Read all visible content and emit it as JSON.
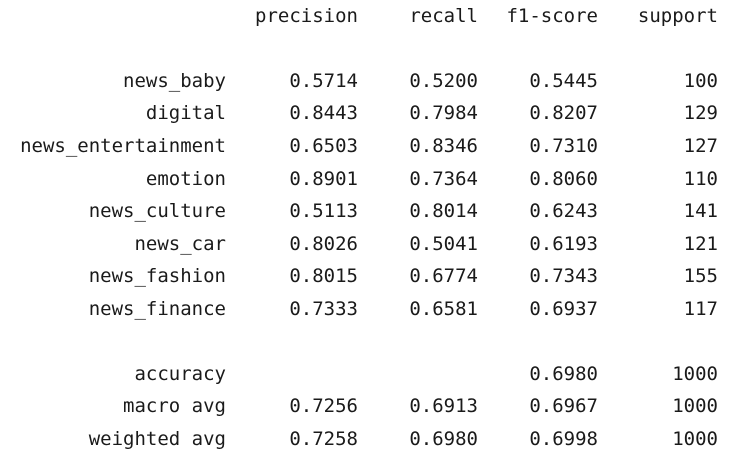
{
  "headers": {
    "precision": "precision",
    "recall": "recall",
    "f1": "f1-score",
    "support": "support"
  },
  "classes": [
    {
      "label": "news_baby",
      "precision": "0.5714",
      "recall": "0.5200",
      "f1": "0.5445",
      "support": "100"
    },
    {
      "label": "digital",
      "precision": "0.8443",
      "recall": "0.7984",
      "f1": "0.8207",
      "support": "129"
    },
    {
      "label": "news_entertainment",
      "precision": "0.6503",
      "recall": "0.8346",
      "f1": "0.7310",
      "support": "127"
    },
    {
      "label": "emotion",
      "precision": "0.8901",
      "recall": "0.7364",
      "f1": "0.8060",
      "support": "110"
    },
    {
      "label": "news_culture",
      "precision": "0.5113",
      "recall": "0.8014",
      "f1": "0.6243",
      "support": "141"
    },
    {
      "label": "news_car",
      "precision": "0.8026",
      "recall": "0.5041",
      "f1": "0.6193",
      "support": "121"
    },
    {
      "label": "news_fashion",
      "precision": "0.8015",
      "recall": "0.6774",
      "f1": "0.7343",
      "support": "155"
    },
    {
      "label": "news_finance",
      "precision": "0.7333",
      "recall": "0.6581",
      "f1": "0.6937",
      "support": "117"
    }
  ],
  "summary": {
    "accuracy": {
      "label": "accuracy",
      "f1": "0.6980",
      "support": "1000"
    },
    "macro": {
      "label": "macro avg",
      "precision": "0.7256",
      "recall": "0.6913",
      "f1": "0.6967",
      "support": "1000"
    },
    "weighted": {
      "label": "weighted avg",
      "precision": "0.7258",
      "recall": "0.6980",
      "f1": "0.6998",
      "support": "1000"
    }
  }
}
